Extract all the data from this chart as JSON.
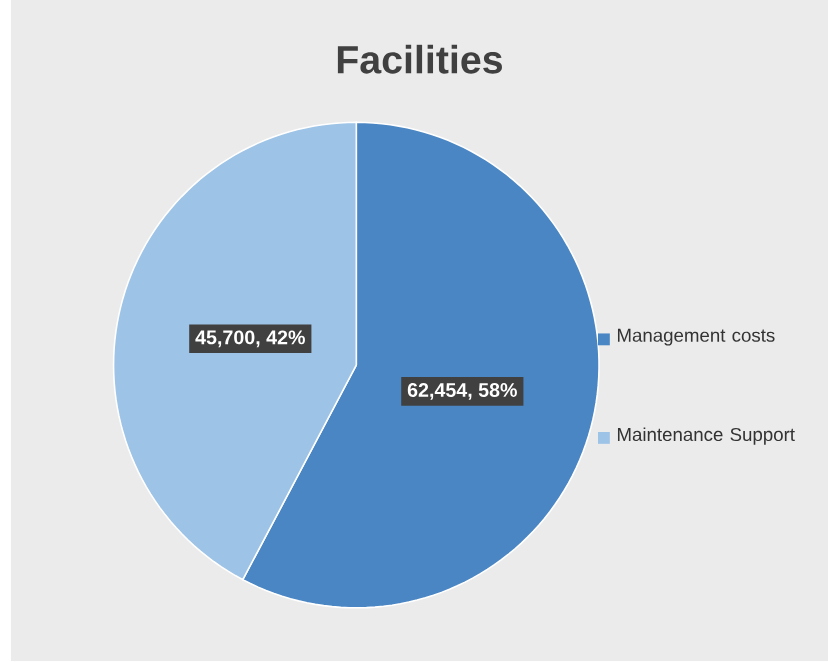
{
  "chart_data": {
    "type": "pie",
    "title": "Facilities",
    "categories": [
      "Management costs",
      "Maintenance Support"
    ],
    "values": [
      62454,
      45700
    ],
    "value_labels": [
      "62,454, 58%",
      "45,700, 42%"
    ],
    "colors": [
      "#4a86c3",
      "#9dc3e6"
    ],
    "legend": "right"
  }
}
